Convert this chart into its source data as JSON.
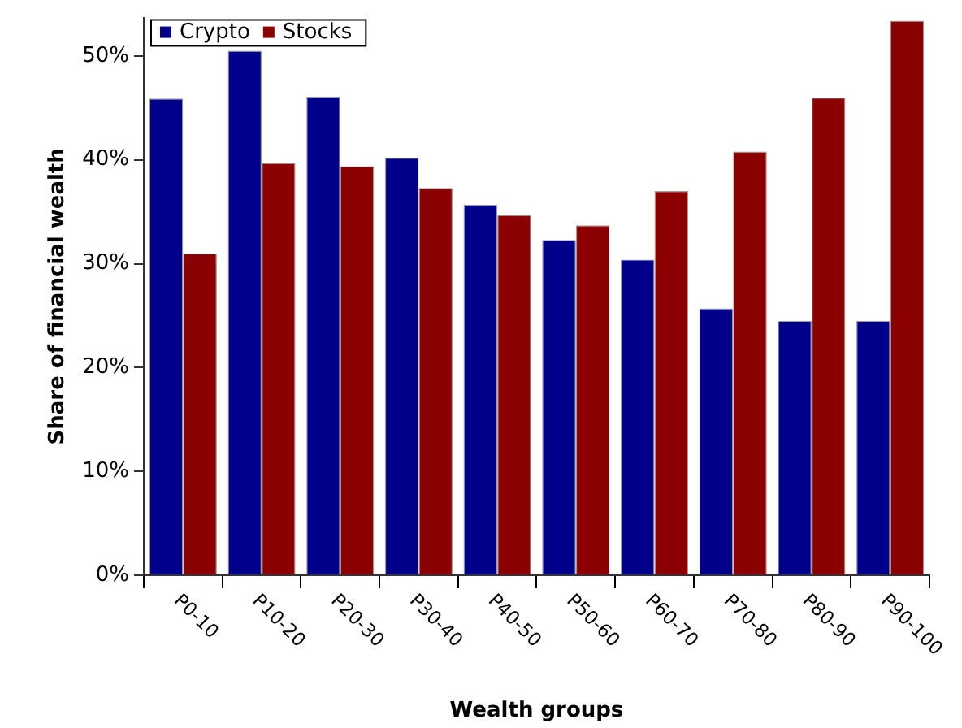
{
  "chart_data": {
    "type": "bar",
    "xlabel": "Wealth groups",
    "ylabel": "Share of financial wealth",
    "categories": [
      "P0-10",
      "P10-20",
      "P20-30",
      "P30-40",
      "P40-50",
      "P50-60",
      "P60-70",
      "P70-80",
      "P80-90",
      "P90-100"
    ],
    "series": [
      {
        "name": "Crypto",
        "color": "#00008b",
        "values": [
          45.9,
          50.5,
          46.1,
          40.2,
          35.7,
          32.3,
          30.4,
          25.7,
          24.5,
          24.5
        ]
      },
      {
        "name": "Stocks",
        "color": "#8b0000",
        "values": [
          31.0,
          39.7,
          39.4,
          37.3,
          34.7,
          33.7,
          37.0,
          40.8,
          46.0,
          53.4
        ]
      }
    ],
    "ylim": [
      0,
      53.7
    ],
    "yticks": [
      {
        "value": 0,
        "label": "0%"
      },
      {
        "value": 10,
        "label": "10%"
      },
      {
        "value": 20,
        "label": "20%"
      },
      {
        "value": 30,
        "label": "30%"
      },
      {
        "value": 40,
        "label": "40%"
      },
      {
        "value": 50,
        "label": "50%"
      }
    ],
    "grid": false,
    "legend": "top left"
  }
}
